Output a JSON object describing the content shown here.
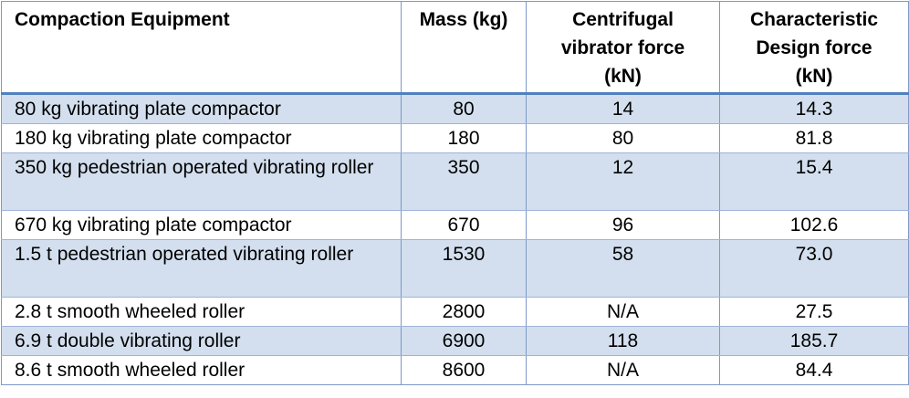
{
  "table": {
    "headers": {
      "equipment": "Compaction Equipment",
      "mass": "Mass (kg)",
      "centrifugal": [
        "Centrifugal",
        "vibrator force",
        "(kN)"
      ],
      "design": [
        "Characteristic",
        "Design force",
        "(kN)"
      ]
    },
    "rows": [
      {
        "equipment": "80 kg vibrating plate compactor",
        "mass": "80",
        "centrifugal": "14",
        "design": "14.3"
      },
      {
        "equipment": "180 kg vibrating plate compactor",
        "mass": "180",
        "centrifugal": "80",
        "design": "81.8"
      },
      {
        "equipment": "350 kg pedestrian operated vibrating roller",
        "mass": "350",
        "centrifugal": "12",
        "design": "15.4"
      },
      {
        "equipment": "670 kg vibrating plate compactor",
        "mass": "670",
        "centrifugal": "96",
        "design": "102.6"
      },
      {
        "equipment": "1.5 t pedestrian operated vibrating roller",
        "mass": "1530",
        "centrifugal": "58",
        "design": "73.0"
      },
      {
        "equipment": "2.8 t smooth wheeled roller",
        "mass": "2800",
        "centrifugal": "N/A",
        "design": "27.5"
      },
      {
        "equipment": "6.9 t double vibrating roller",
        "mass": "6900",
        "centrifugal": "118",
        "design": "185.7"
      },
      {
        "equipment": "8.6 t smooth wheeled roller",
        "mass": "8600",
        "centrifugal": "N/A",
        "design": "84.4"
      }
    ],
    "colors": {
      "shaded_row": "#d3dfee",
      "header_rule": "#4f81bd",
      "grid": "#7f98c6"
    }
  }
}
